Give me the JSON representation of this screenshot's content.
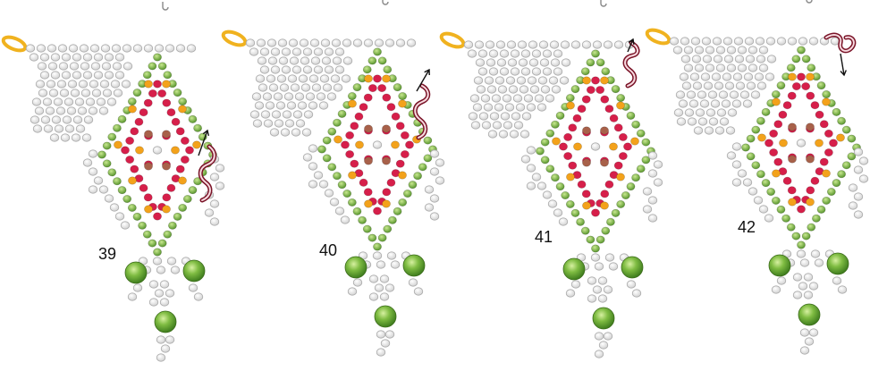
{
  "steps": [
    {
      "number": "39",
      "variant": "side-left"
    },
    {
      "number": "40",
      "variant": "side-upper"
    },
    {
      "number": "41",
      "variant": "top-loop"
    },
    {
      "number": "42",
      "variant": "top-right-loop"
    }
  ],
  "colors": {
    "seed_bead": "#dcdcdc",
    "seed_bead_stroke": "#a9a9a9",
    "green_bead": "#6aa83a",
    "green_bead_light": "#a9d36b",
    "red_bead": "#d61f4a",
    "orange_bead": "#f3a21b",
    "brown_bead": "#a8614a",
    "ring": "#f0b21f",
    "thread_path": "#7a1428",
    "arrow": "#111111"
  },
  "icons": [
    "jump-ring-icon",
    "thread-path-icon",
    "direction-arrow-icon"
  ]
}
